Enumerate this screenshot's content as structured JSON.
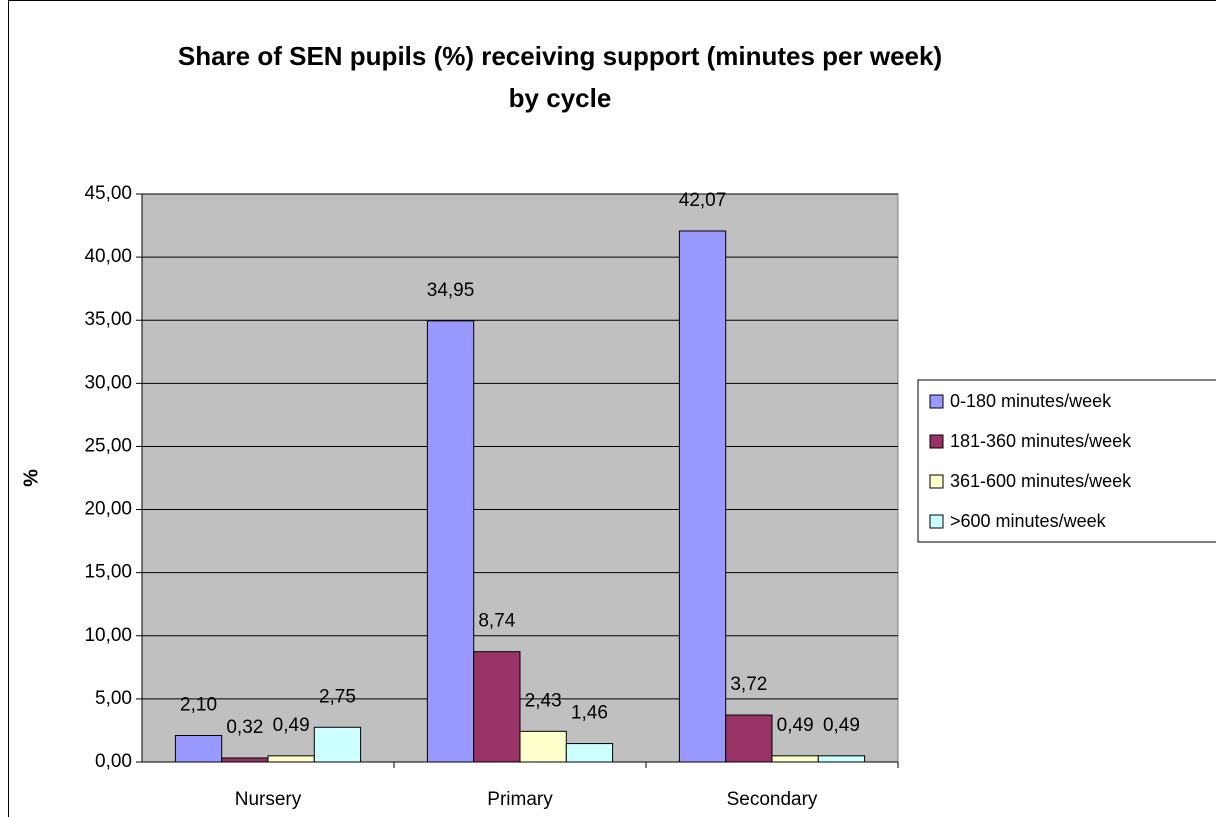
{
  "chart_data": {
    "type": "bar",
    "title": [
      "Share of SEN pupils (%) receiving support (minutes per week)",
      "by cycle"
    ],
    "y_label": "%",
    "categories": [
      "Nursery",
      "Primary",
      "Secondary"
    ],
    "series": [
      {
        "name": "0-180 minutes/week",
        "color": "#9999ff",
        "values": [
          2.1,
          34.95,
          42.07
        ],
        "value_labels": [
          "2,10",
          "34,95",
          "42,07"
        ]
      },
      {
        "name": "181-360 minutes/week",
        "color": "#993366",
        "values": [
          0.32,
          8.74,
          3.72
        ],
        "value_labels": [
          "0,32",
          "8,74",
          "3,72"
        ]
      },
      {
        "name": "361-600 minutes/week",
        "color": "#ffffcc",
        "values": [
          0.49,
          2.43,
          0.49
        ],
        "value_labels": [
          "0,49",
          "2,43",
          "0,49"
        ]
      },
      {
        "name": ">600 minutes/week",
        "color": "#ccffff",
        "values": [
          2.75,
          1.46,
          0.49
        ],
        "value_labels": [
          "2,75",
          "1,46",
          "0,49"
        ]
      }
    ],
    "ylim": [
      0,
      45
    ],
    "yticks": [
      {
        "value": 0,
        "label": "0,00"
      },
      {
        "value": 5,
        "label": "5,00"
      },
      {
        "value": 10,
        "label": "10,00"
      },
      {
        "value": 15,
        "label": "15,00"
      },
      {
        "value": 20,
        "label": "20,00"
      },
      {
        "value": 25,
        "label": "25,00"
      },
      {
        "value": 30,
        "label": "30,00"
      },
      {
        "value": 35,
        "label": "35,00"
      },
      {
        "value": 40,
        "label": "40,00"
      },
      {
        "value": 45,
        "label": "45,00"
      }
    ],
    "grid": true,
    "legend": "right"
  }
}
